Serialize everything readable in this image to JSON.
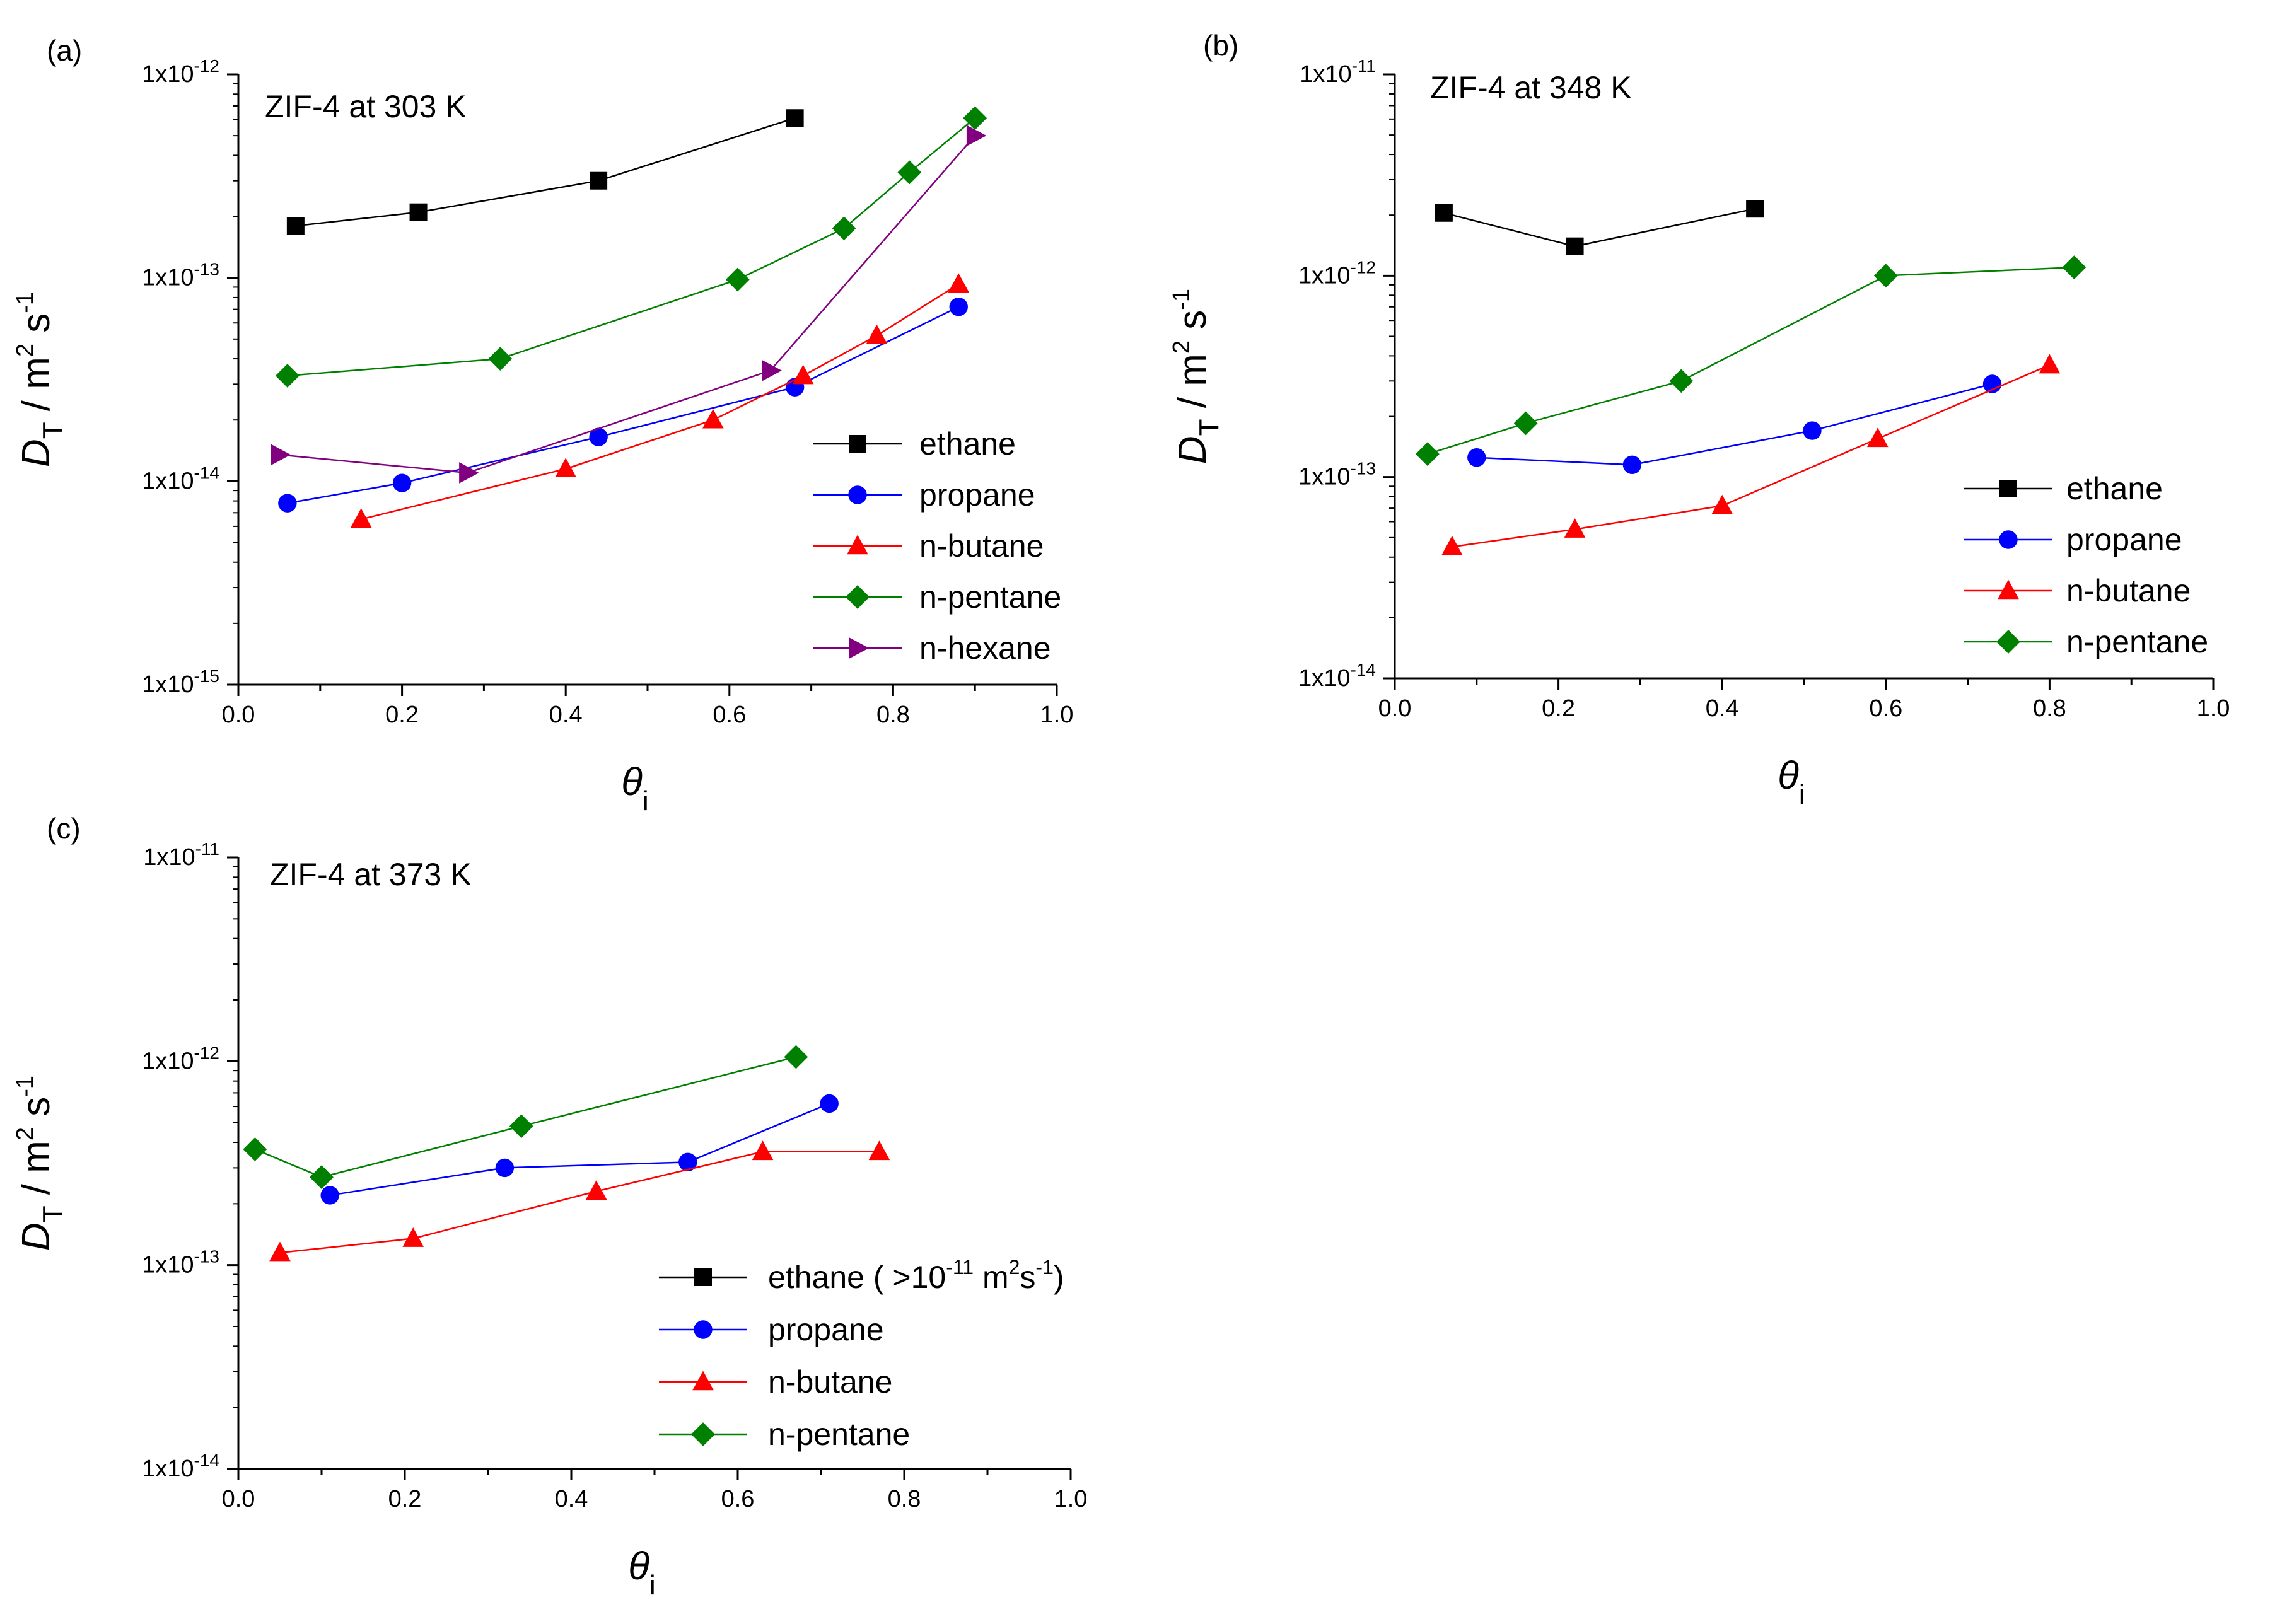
{
  "figure": {
    "unit_label": "m",
    "unit_label_s": "s",
    "exp_two": "2",
    "exp_neg1": "-1",
    "xlabel_main": "θ",
    "xlabel_sub": "i",
    "ylabel_main": "D",
    "ylabel_sub": "T",
    "ylabel_sep": " / ",
    "tick_base": "1x10"
  },
  "chart_data": [
    {
      "type": "line",
      "panel": "(a)",
      "title": "ZIF-4 at 303 K",
      "xlabel": "θi",
      "ylabel": "DT / m2 s-1",
      "yscale": "log",
      "xlim": [
        0.0,
        1.0
      ],
      "ylim": [
        1e-15,
        1e-12
      ],
      "xticks": [
        "0.0",
        "0.2",
        "0.4",
        "0.6",
        "0.8",
        "1.0"
      ],
      "yticks": [
        {
          "value": 1e-15,
          "exp": "-15"
        },
        {
          "value": 1e-14,
          "exp": "-14"
        },
        {
          "value": 1e-13,
          "exp": "-13"
        },
        {
          "value": 1e-12,
          "exp": "-12"
        }
      ],
      "legend_position": "bottom-right",
      "series": [
        {
          "name": "ethane",
          "color": "#000000",
          "marker": "square",
          "points": [
            [
              0.07,
              1.8e-13
            ],
            [
              0.22,
              2.1e-13
            ],
            [
              0.44,
              3e-13
            ],
            [
              0.68,
              6.1e-13
            ]
          ]
        },
        {
          "name": "propane",
          "color": "#0000ff",
          "marker": "circle",
          "points": [
            [
              0.06,
              7.8e-15
            ],
            [
              0.2,
              9.8e-15
            ],
            [
              0.44,
              1.65e-14
            ],
            [
              0.68,
              2.9e-14
            ],
            [
              0.88,
              7.2e-14
            ]
          ]
        },
        {
          "name": "n-butane",
          "color": "#ff0000",
          "marker": "triangle",
          "points": [
            [
              0.15,
              6.5e-15
            ],
            [
              0.4,
              1.15e-14
            ],
            [
              0.58,
              2e-14
            ],
            [
              0.69,
              3.3e-14
            ],
            [
              0.78,
              5.2e-14
            ],
            [
              0.88,
              9.3e-14
            ]
          ]
        },
        {
          "name": "n-pentane",
          "color": "#008000",
          "marker": "diamond",
          "points": [
            [
              0.06,
              3.3e-14
            ],
            [
              0.32,
              4e-14
            ],
            [
              0.61,
              9.8e-14
            ],
            [
              0.74,
              1.75e-13
            ],
            [
              0.82,
              3.3e-13
            ],
            [
              0.9,
              6.1e-13
            ]
          ]
        },
        {
          "name": "n-hexane",
          "color": "#800080",
          "marker": "triangle-right",
          "points": [
            [
              0.05,
              1.35e-14
            ],
            [
              0.28,
              1.1e-14
            ],
            [
              0.65,
              3.5e-14
            ],
            [
              0.9,
              5e-13
            ]
          ]
        }
      ]
    },
    {
      "type": "line",
      "panel": "(b)",
      "title": "ZIF-4 at 348 K",
      "xlabel": "θi",
      "ylabel": "DT / m2 s-1",
      "yscale": "log",
      "xlim": [
        0.0,
        1.0
      ],
      "ylim": [
        1e-14,
        1e-11
      ],
      "xticks": [
        "0.0",
        "0.2",
        "0.4",
        "0.6",
        "0.8",
        "1.0"
      ],
      "yticks": [
        {
          "value": 1e-14,
          "exp": "-14"
        },
        {
          "value": 1e-13,
          "exp": "-13"
        },
        {
          "value": 1e-12,
          "exp": "-12"
        },
        {
          "value": 1e-11,
          "exp": "-11"
        }
      ],
      "legend_position": "bottom-right",
      "series": [
        {
          "name": "ethane",
          "color": "#000000",
          "marker": "square",
          "points": [
            [
              0.06,
              2.05e-12
            ],
            [
              0.22,
              1.4e-12
            ],
            [
              0.44,
              2.15e-12
            ]
          ]
        },
        {
          "name": "propane",
          "color": "#0000ff",
          "marker": "circle",
          "points": [
            [
              0.1,
              1.25e-13
            ],
            [
              0.29,
              1.15e-13
            ],
            [
              0.51,
              1.7e-13
            ],
            [
              0.73,
              2.9e-13
            ]
          ]
        },
        {
          "name": "n-butane",
          "color": "#ff0000",
          "marker": "triangle",
          "points": [
            [
              0.07,
              4.5e-14
            ],
            [
              0.22,
              5.5e-14
            ],
            [
              0.4,
              7.2e-14
            ],
            [
              0.59,
              1.55e-13
            ],
            [
              0.8,
              3.6e-13
            ]
          ]
        },
        {
          "name": "n-pentane",
          "color": "#008000",
          "marker": "diamond",
          "points": [
            [
              0.04,
              1.3e-13
            ],
            [
              0.16,
              1.85e-13
            ],
            [
              0.35,
              3e-13
            ],
            [
              0.6,
              1e-12
            ],
            [
              0.83,
              1.1e-12
            ]
          ]
        }
      ]
    },
    {
      "type": "line",
      "panel": "(c)",
      "title": "ZIF-4 at 373 K",
      "xlabel": "θi",
      "ylabel": "DT / m2 s-1",
      "yscale": "log",
      "xlim": [
        0.0,
        1.0
      ],
      "ylim": [
        1e-14,
        1e-11
      ],
      "xticks": [
        "0.0",
        "0.2",
        "0.4",
        "0.6",
        "0.8",
        "1.0"
      ],
      "yticks": [
        {
          "value": 1e-14,
          "exp": "-14"
        },
        {
          "value": 1e-13,
          "exp": "-13"
        },
        {
          "value": 1e-12,
          "exp": "-12"
        },
        {
          "value": 1e-11,
          "exp": "-11"
        }
      ],
      "legend_position": "bottom-right",
      "legend_note": {
        "series": "ethane",
        "prefix": "( >10",
        "exp1": "-11",
        "mid": " m",
        "exp2": "2",
        "s": "s",
        "exp3": "-1",
        "suffix": ")"
      },
      "series": [
        {
          "name": "ethane",
          "color": "#000000",
          "marker": "square",
          "points": []
        },
        {
          "name": "propane",
          "color": "#0000ff",
          "marker": "circle",
          "points": [
            [
              0.11,
              2.2e-13
            ],
            [
              0.32,
              3e-13
            ],
            [
              0.54,
              3.2e-13
            ],
            [
              0.71,
              6.2e-13
            ]
          ]
        },
        {
          "name": "n-butane",
          "color": "#ff0000",
          "marker": "triangle",
          "points": [
            [
              0.05,
              1.15e-13
            ],
            [
              0.21,
              1.35e-13
            ],
            [
              0.43,
              2.3e-13
            ],
            [
              0.63,
              3.6e-13
            ],
            [
              0.77,
              3.6e-13
            ]
          ]
        },
        {
          "name": "n-pentane",
          "color": "#008000",
          "marker": "diamond",
          "points": [
            [
              0.02,
              3.7e-13
            ],
            [
              0.1,
              2.7e-13
            ],
            [
              0.34,
              4.8e-13
            ],
            [
              0.67,
              1.05e-12
            ]
          ]
        }
      ]
    }
  ]
}
